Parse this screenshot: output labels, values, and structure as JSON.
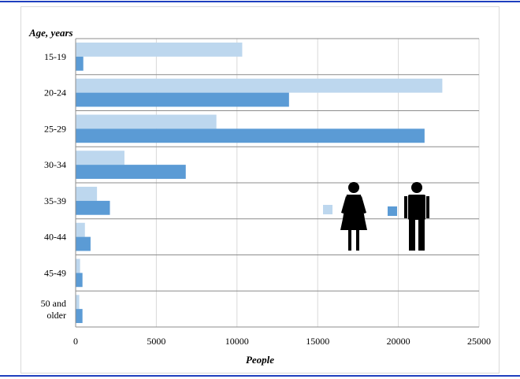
{
  "chart_data": {
    "type": "bar",
    "orientation": "horizontal",
    "ylabel": "Age, years",
    "xlabel": "People",
    "xlim": [
      0,
      25000
    ],
    "xticks": [
      0,
      5000,
      10000,
      15000,
      20000,
      25000
    ],
    "grid": true,
    "categories": [
      "15-19",
      "20-24",
      "25-29",
      "30-34",
      "35-39",
      "40-44",
      "45-49",
      "50 and older"
    ],
    "series": [
      {
        "color": "#bdd7ee",
        "values": [
          10300,
          22700,
          8700,
          3000,
          1300,
          550,
          250,
          200
        ],
        "legend_icon": "female-figure-icon"
      },
      {
        "color": "#5b9bd5",
        "values": [
          450,
          13200,
          21600,
          6800,
          2100,
          900,
          400,
          400
        ],
        "legend_icon": "male-figure-icon"
      }
    ],
    "legend": "right, inside plot area"
  }
}
